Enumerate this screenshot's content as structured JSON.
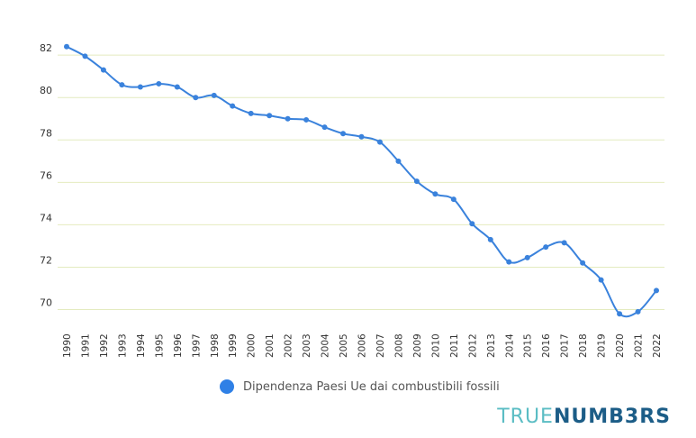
{
  "chart_data": {
    "type": "line",
    "title": "",
    "xlabel": "",
    "ylabel": "",
    "x": [
      "1990",
      "1991",
      "1992",
      "1993",
      "1994",
      "1995",
      "1996",
      "1997",
      "1998",
      "1999",
      "2000",
      "2001",
      "2002",
      "2003",
      "2004",
      "2005",
      "2006",
      "2007",
      "2008",
      "2009",
      "2010",
      "2011",
      "2012",
      "2013",
      "2014",
      "2015",
      "2016",
      "2017",
      "2018",
      "2019",
      "2020",
      "2021",
      "2022"
    ],
    "series": [
      {
        "name": "Dipendenza Paesi Ue dai combustibili fossili",
        "values": [
          82.4,
          81.95,
          81.3,
          80.6,
          80.5,
          80.65,
          80.5,
          80.0,
          80.1,
          79.6,
          79.25,
          79.15,
          79.0,
          78.95,
          78.6,
          78.3,
          78.15,
          77.9,
          77.0,
          76.05,
          75.45,
          75.2,
          74.05,
          73.3,
          72.25,
          72.45,
          72.95,
          73.15,
          72.2,
          71.4,
          69.8,
          69.9,
          70.9
        ],
        "color": "#3a82dc"
      }
    ],
    "yticks": [
      70,
      72,
      74,
      76,
      78,
      80,
      82
    ],
    "ylim": [
      69.3,
      82.9
    ],
    "grid": true,
    "grid_color": "#e4ebbf",
    "legend_position": "bottom"
  },
  "legend": {
    "label": "Dipendenza Paesi Ue dai combustibili fossili",
    "color": "#2f80e6"
  },
  "brand": {
    "part1": "TRUE",
    "part2": "NUMB3RS"
  }
}
